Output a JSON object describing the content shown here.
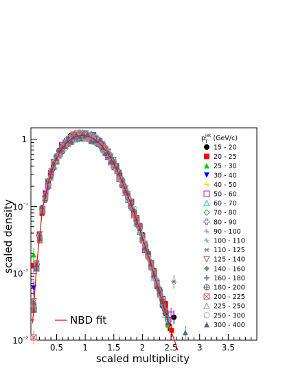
{
  "chart_data": {
    "type": "scatter",
    "title": "",
    "xlabel": "scaled multiplicity",
    "ylabel": "scaled density",
    "xlim": [
      0.05,
      4.0
    ],
    "ylim": [
      0.001,
      1.5
    ],
    "yscale": "log",
    "x_ticks": [
      "0.5",
      "1",
      "1.5",
      "2",
      "2.5",
      "3",
      "3.5"
    ],
    "y_ticks": [
      "10⁻³",
      "10⁻²",
      "10⁻¹",
      "1"
    ],
    "legend_title": "p_T^jet (GeV/c)",
    "legend_position": "right",
    "fit_label": "NBD fit",
    "fit": {
      "x": [
        0.08,
        0.15,
        0.25,
        0.35,
        0.45,
        0.55,
        0.65,
        0.75,
        0.85,
        0.95,
        1.05,
        1.15,
        1.25,
        1.35,
        1.45,
        1.55,
        1.65,
        1.75,
        1.85,
        1.95,
        2.05,
        2.15,
        2.25,
        2.35,
        2.45,
        2.55,
        2.62
      ],
      "y": [
        0.0018,
        0.013,
        0.09,
        0.22,
        0.42,
        0.64,
        0.85,
        1.02,
        1.12,
        1.15,
        1.12,
        1.03,
        0.88,
        0.7,
        0.52,
        0.36,
        0.23,
        0.14,
        0.082,
        0.046,
        0.025,
        0.0135,
        0.007,
        0.0037,
        0.0019,
        0.00105,
        0.0007
      ]
    },
    "base_x": [
      0.1,
      0.15,
      0.2,
      0.25,
      0.3,
      0.35,
      0.4,
      0.45,
      0.5,
      0.55,
      0.6,
      0.65,
      0.7,
      0.75,
      0.8,
      0.85,
      0.9,
      0.95,
      1.0,
      1.05,
      1.1,
      1.15,
      1.2,
      1.25,
      1.3,
      1.35,
      1.4,
      1.45,
      1.5,
      1.55,
      1.6,
      1.65,
      1.7,
      1.75,
      1.8,
      1.85,
      1.9,
      1.95,
      2.0,
      2.05,
      2.1,
      2.15,
      2.2,
      2.25,
      2.3,
      2.35,
      2.4,
      2.45,
      2.5
    ],
    "series": [
      {
        "name": "15 - 20",
        "color": "#000000",
        "marker": "circle",
        "x_end": 2.5,
        "outliers": [
          [
            2.4,
            0.0025
          ],
          [
            2.55,
            0.0022
          ]
        ]
      },
      {
        "name": "20 - 25",
        "color": "#ff0000",
        "marker": "square",
        "x_end": 2.5,
        "outliers": [
          [
            0.1,
            0.013
          ],
          [
            2.4,
            0.0035
          ]
        ]
      },
      {
        "name": "25 - 30",
        "color": "#00cc00",
        "marker": "triangle-up",
        "x_end": 2.45,
        "outliers": [
          [
            0.1,
            0.019
          ]
        ]
      },
      {
        "name": "30 - 40",
        "color": "#0000ff",
        "marker": "triangle-down",
        "x_end": 2.45,
        "outliers": [
          [
            0.1,
            0.006
          ]
        ]
      },
      {
        "name": "40 - 50",
        "color": "#e6e600",
        "marker": "star",
        "x_end": 2.45,
        "outliers": []
      },
      {
        "name": "50 - 60",
        "color": "#cc00cc",
        "marker": "square-open",
        "x_end": 2.45,
        "outliers": [
          [
            2.5,
            0.0024
          ]
        ]
      },
      {
        "name": "60 - 70",
        "color": "#00cccc",
        "marker": "triangle-up-open",
        "x_end": 2.45,
        "outliers": []
      },
      {
        "name": "70 - 80",
        "color": "#339933",
        "marker": "diamond-open",
        "x_end": 2.45,
        "outliers": []
      },
      {
        "name": "80 - 90",
        "color": "#6666cc",
        "marker": "cross-open",
        "x_end": 2.4,
        "outliers": []
      },
      {
        "name": "90 - 100",
        "color": "#999999",
        "marker": "star",
        "x_end": 2.4,
        "outliers": []
      },
      {
        "name": "100 - 110",
        "color": "#66aaaa",
        "marker": "star",
        "x_end": 2.4,
        "outliers": []
      },
      {
        "name": "110 - 125",
        "color": "#777777",
        "marker": "asterisk",
        "x_end": 2.4,
        "outliers": [
          [
            2.55,
            0.0075
          ]
        ]
      },
      {
        "name": "125 - 140",
        "color": "#996666",
        "marker": "triangle-down-open",
        "x_end": 2.4,
        "outliers": [
          [
            0.1,
            0.0038
          ]
        ]
      },
      {
        "name": "140 - 160",
        "color": "#669966",
        "marker": "diamond",
        "x_end": 2.35,
        "outliers": []
      },
      {
        "name": "160 - 180",
        "color": "#6688bb",
        "marker": "cross",
        "x_end": 2.35,
        "outliers": []
      },
      {
        "name": "180 - 200",
        "color": "#555555",
        "marker": "circle-cross",
        "x_end": 2.35,
        "outliers": []
      },
      {
        "name": "200 - 225",
        "color": "#cc6666",
        "marker": "square-x",
        "x_end": 2.3,
        "outliers": [
          [
            0.1,
            0.0011
          ]
        ]
      },
      {
        "name": "225 - 250",
        "color": "#aa8888",
        "marker": "triangle-up-open",
        "x_end": 2.3,
        "outliers": []
      },
      {
        "name": "250 - 300",
        "color": "#99aacc",
        "marker": "circle-open",
        "x_end": 2.3,
        "outliers": []
      },
      {
        "name": "300 - 400",
        "color": "#556688",
        "marker": "triangle-up",
        "x_end": 2.3,
        "outliers": [
          [
            2.75,
            0.0013
          ]
        ]
      }
    ]
  }
}
